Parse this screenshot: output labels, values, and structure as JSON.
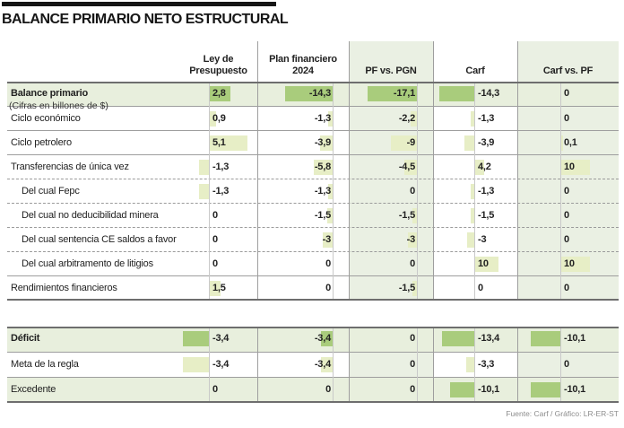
{
  "title": "BALANCE PRIMARIO NETO ESTRUCTURAL",
  "subtitle": "(Cifras en billones de $)",
  "source": "Fuente: Carf / Gráfico: LR-ER-ST",
  "colors": {
    "highlight_row": "#e8efdd",
    "column_tint": "#eaf0e3",
    "bar_light": "#e7eec6",
    "bar_medium": "#a9cc7c",
    "grid": "#9e9e9e",
    "grid_dark": "#6e6e6e",
    "baseline": "#c9c9c9"
  },
  "columns": [
    {
      "key": "ley",
      "label_lines": [
        "Ley de",
        "Presupuesto"
      ],
      "tinted": false
    },
    {
      "key": "plan",
      "label_lines": [
        "Plan financiero",
        "2024"
      ],
      "tinted": false
    },
    {
      "key": "pf",
      "label_lines": [
        "PF vs. PGN"
      ],
      "tinted": true
    },
    {
      "key": "carf",
      "label_lines": [
        "Carf"
      ],
      "tinted": false
    },
    {
      "key": "cvp",
      "label_lines": [
        "Carf vs. PF"
      ],
      "tinted": true
    }
  ],
  "main_rows": [
    {
      "label": "Balance primario",
      "bold": true,
      "highlight": true,
      "indent": false,
      "sep": "none",
      "values": [
        {
          "d": "2,8",
          "v": 2.8
        },
        {
          "d": "-14,3",
          "v": -14.3
        },
        {
          "d": "-17,1",
          "v": -17.1
        },
        {
          "d": "-14,3",
          "v": -14.3
        },
        {
          "d": "0",
          "v": 0
        }
      ]
    },
    {
      "label": "Ciclo económico",
      "bold": false,
      "highlight": false,
      "indent": false,
      "sep": "solid",
      "values": [
        {
          "d": "0,9",
          "v": 0.9
        },
        {
          "d": "-1,3",
          "v": -1.3
        },
        {
          "d": "-2,2",
          "v": -2.2
        },
        {
          "d": "-1,3",
          "v": -1.3
        },
        {
          "d": "0",
          "v": 0
        }
      ]
    },
    {
      "label": "Ciclo petrolero",
      "bold": false,
      "highlight": false,
      "indent": false,
      "sep": "solid",
      "values": [
        {
          "d": "5,1",
          "v": 5.1
        },
        {
          "d": "-3,9",
          "v": -3.9
        },
        {
          "d": "-9",
          "v": -9
        },
        {
          "d": "-3,9",
          "v": -3.9
        },
        {
          "d": "0,1",
          "v": 0.1
        }
      ]
    },
    {
      "label": "Transferencias de única vez",
      "bold": false,
      "highlight": false,
      "indent": false,
      "sep": "solid",
      "values": [
        {
          "d": "-1,3",
          "v": -1.3
        },
        {
          "d": "-5,8",
          "v": -5.8
        },
        {
          "d": "-4,5",
          "v": -4.5
        },
        {
          "d": "4,2",
          "v": 4.2
        },
        {
          "d": "10",
          "v": 10
        }
      ]
    },
    {
      "label": "Del cual Fepc",
      "bold": false,
      "highlight": false,
      "indent": true,
      "sep": "dashed",
      "values": [
        {
          "d": "-1,3",
          "v": -1.3
        },
        {
          "d": "-1,3",
          "v": -1.3
        },
        {
          "d": "0",
          "v": 0
        },
        {
          "d": "-1,3",
          "v": -1.3
        },
        {
          "d": "0",
          "v": 0
        }
      ]
    },
    {
      "label": "Del cual no deducibilidad minera",
      "bold": false,
      "highlight": false,
      "indent": true,
      "sep": "dashed",
      "values": [
        {
          "d": "0",
          "v": 0
        },
        {
          "d": "-1,5",
          "v": -1.5
        },
        {
          "d": "-1,5",
          "v": -1.5
        },
        {
          "d": "-1,5",
          "v": -1.5
        },
        {
          "d": "0",
          "v": 0
        }
      ]
    },
    {
      "label": "Del cual sentencia CE saldos a favor",
      "bold": false,
      "highlight": false,
      "indent": true,
      "sep": "dashed",
      "values": [
        {
          "d": "0",
          "v": 0
        },
        {
          "d": "-3",
          "v": -3
        },
        {
          "d": "-3",
          "v": -3
        },
        {
          "d": "-3",
          "v": -3
        },
        {
          "d": "0",
          "v": 0
        }
      ]
    },
    {
      "label": "Del cual arbitramento de litigios",
      "bold": false,
      "highlight": false,
      "indent": true,
      "sep": "dashed",
      "values": [
        {
          "d": "0",
          "v": 0
        },
        {
          "d": "0",
          "v": 0
        },
        {
          "d": "0",
          "v": 0
        },
        {
          "d": "10",
          "v": 10
        },
        {
          "d": "10",
          "v": 10
        }
      ]
    },
    {
      "label": "Rendimientos financieros",
      "bold": false,
      "highlight": false,
      "indent": false,
      "sep": "solid",
      "values": [
        {
          "d": "1,5",
          "v": 1.5
        },
        {
          "d": "0",
          "v": 0
        },
        {
          "d": "-1,5",
          "v": -1.5
        },
        {
          "d": "0",
          "v": 0
        },
        {
          "d": "0",
          "v": 0
        }
      ]
    }
  ],
  "bottom_rows": [
    {
      "label": "Déficit",
      "bold": true,
      "highlight": true,
      "indent": false,
      "sep": "none",
      "values": [
        {
          "d": "-3,4",
          "v": -3.4
        },
        {
          "d": "-3,4",
          "v": -3.4
        },
        {
          "d": "0",
          "v": 0
        },
        {
          "d": "-13,4",
          "v": -13.4
        },
        {
          "d": "-10,1",
          "v": -10.1
        }
      ]
    },
    {
      "label": "Meta de la regla",
      "bold": false,
      "highlight": false,
      "indent": false,
      "sep": "solid",
      "values": [
        {
          "d": "-3,4",
          "v": -3.4
        },
        {
          "d": "-3,4",
          "v": -3.4
        },
        {
          "d": "0",
          "v": 0
        },
        {
          "d": "-3,3",
          "v": -3.3
        },
        {
          "d": "0",
          "v": 0
        }
      ]
    },
    {
      "label": "Excedente",
      "bold": false,
      "highlight": true,
      "indent": false,
      "sep": "solid",
      "values": [
        {
          "d": "0",
          "v": 0
        },
        {
          "d": "0",
          "v": 0
        },
        {
          "d": "0",
          "v": 0
        },
        {
          "d": "-10,1",
          "v": -10.1
        },
        {
          "d": "-10,1",
          "v": -10.1
        }
      ]
    }
  ],
  "chart_data": {
    "type": "table",
    "title": "BALANCE PRIMARIO NETO ESTRUCTURAL",
    "units": "billones de $",
    "columns": [
      "Ley de Presupuesto",
      "Plan financiero 2024",
      "PF vs. PGN",
      "Carf",
      "Carf vs. PF"
    ],
    "rows": [
      "Balance primario",
      "Ciclo económico",
      "Ciclo petrolero",
      "Transferencias de única vez",
      "Del cual Fepc",
      "Del cual no deducibilidad minera",
      "Del cual sentencia CE saldos a favor",
      "Del cual arbitramento de litigios",
      "Rendimientos financieros"
    ],
    "values": [
      [
        2.8,
        -14.3,
        -17.1,
        -14.3,
        0
      ],
      [
        0.9,
        -1.3,
        -2.2,
        -1.3,
        0
      ],
      [
        5.1,
        -3.9,
        -9,
        -3.9,
        0.1
      ],
      [
        -1.3,
        -5.8,
        -4.5,
        4.2,
        10
      ],
      [
        -1.3,
        -1.3,
        0,
        -1.3,
        0
      ],
      [
        0,
        -1.5,
        -1.5,
        -1.5,
        0
      ],
      [
        0,
        -3,
        -3,
        -3,
        0
      ],
      [
        0,
        0,
        0,
        10,
        10
      ],
      [
        1.5,
        0,
        -1.5,
        0,
        0
      ]
    ],
    "summary_rows": [
      "Déficit",
      "Meta de la regla",
      "Excedente"
    ],
    "summary_values": [
      [
        -3.4,
        -3.4,
        0,
        -13.4,
        -10.1
      ],
      [
        -3.4,
        -3.4,
        0,
        -3.3,
        0
      ],
      [
        0,
        0,
        0,
        -10.1,
        -10.1
      ]
    ]
  }
}
